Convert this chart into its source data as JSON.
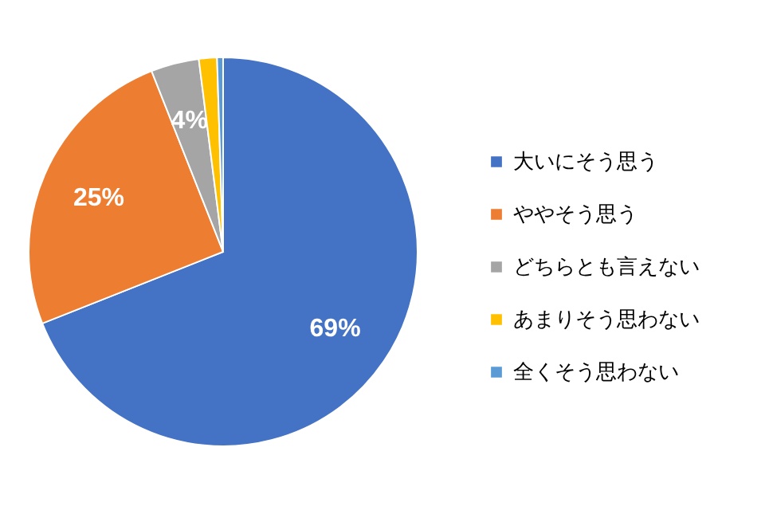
{
  "chart_data": {
    "type": "pie",
    "categories": [
      "大いにそう思う",
      "ややそう思う",
      "どちらとも言えない",
      "あまりそう思わない",
      "全くそう思わない"
    ],
    "values": [
      69,
      25,
      4,
      1.5,
      0.5
    ],
    "value_labels": [
      "69%",
      "25%",
      "4%",
      null,
      null
    ],
    "colors": [
      "#4472c4",
      "#ed7d31",
      "#a5a5a5",
      "#ffc000",
      "#5b9bd5"
    ],
    "legend": "right"
  }
}
